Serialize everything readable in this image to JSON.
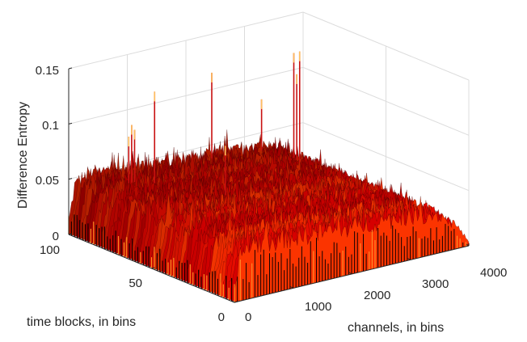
{
  "chart_data": {
    "type": "surface",
    "title": "",
    "xlabel": "channels, in bins",
    "ylabel": "time blocks, in bins",
    "zlabel": "Difference Entropy",
    "x_ticks": [
      "0",
      "1000",
      "2000",
      "3000",
      "4000"
    ],
    "y_ticks": [
      "0",
      "50",
      "100"
    ],
    "z_ticks": [
      "0",
      "0.05",
      "0.1",
      "0.15"
    ],
    "xlim": [
      0,
      4000
    ],
    "ylim": [
      0,
      100
    ],
    "zlim": [
      0,
      0.15
    ],
    "grid": true,
    "colormap": "hot",
    "colors": [
      "#000000",
      "#5a0000",
      "#b40000",
      "#e00000",
      "#ff3c00",
      "#ff9a30"
    ],
    "surface_profile": {
      "channels": [
        0,
        100,
        300,
        600,
        1000,
        1500,
        2000,
        2500,
        3000,
        3500,
        3800,
        4000
      ],
      "typical_level": [
        0.012,
        0.043,
        0.05,
        0.048,
        0.047,
        0.045,
        0.043,
        0.042,
        0.04,
        0.035,
        0.02,
        0.004
      ]
    },
    "spikes": [
      {
        "channel": 600,
        "time_block": 85,
        "value": 0.09
      },
      {
        "channel": 650,
        "time_block": 85,
        "value": 0.1
      },
      {
        "channel": 700,
        "time_block": 85,
        "value": 0.095
      },
      {
        "channel": 900,
        "time_block": 80,
        "value": 0.13
      },
      {
        "channel": 1400,
        "time_block": 55,
        "value": 0.09
      },
      {
        "channel": 2300,
        "time_block": 95,
        "value": 0.12
      },
      {
        "channel": 3150,
        "time_block": 95,
        "value": 0.085
      },
      {
        "channel": 3700,
        "time_block": 95,
        "value": 0.12
      },
      {
        "channel": 3800,
        "time_block": 95,
        "value": 0.12
      },
      {
        "channel": 3750,
        "time_block": 95,
        "value": 0.1
      }
    ]
  }
}
